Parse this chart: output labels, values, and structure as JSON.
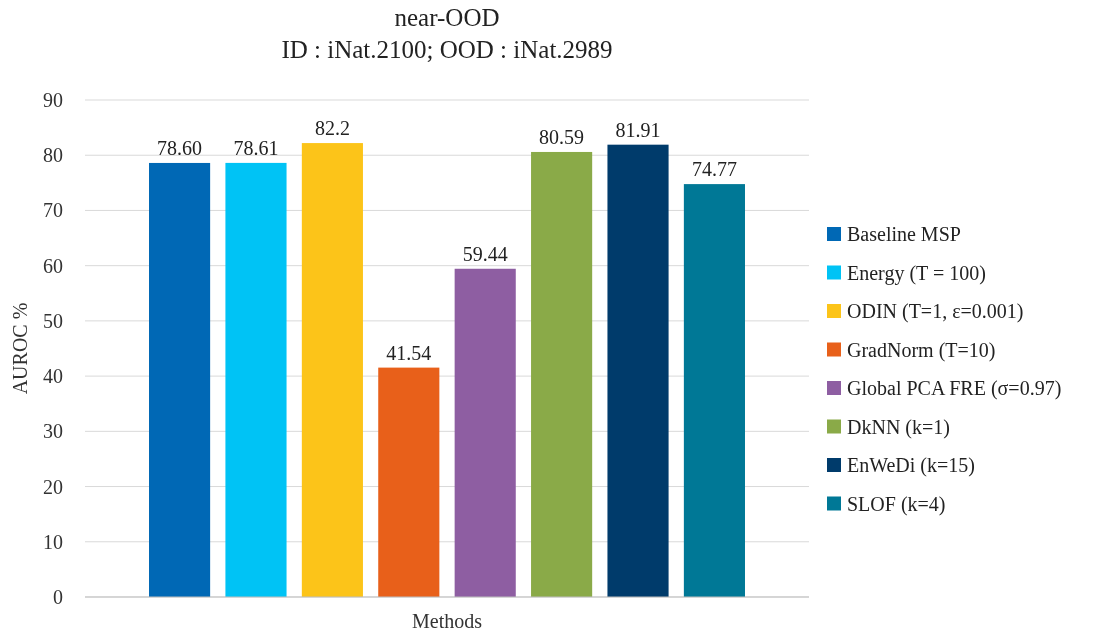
{
  "chart_data": {
    "type": "bar",
    "title": "near-OOD",
    "subtitle": "ID : iNat.2100; OOD : iNat.2989",
    "xlabel": "Methods",
    "ylabel": "AUROC %",
    "categories": [
      null
    ],
    "series": [
      {
        "name": "Baseline MSP",
        "color": "#0068b5",
        "values": [
          78.6
        ],
        "value_labels": [
          "78.60"
        ]
      },
      {
        "name": "Energy (T = 100)",
        "color": "#00c3f5",
        "values": [
          78.61
        ],
        "value_labels": [
          "78.61"
        ]
      },
      {
        "name": "ODIN (T=1, ε=0.001)",
        "color": "#fcc419",
        "values": [
          82.2
        ],
        "value_labels": [
          "82.2"
        ]
      },
      {
        "name": "GradNorm (T=10)",
        "color": "#e8601a",
        "values": [
          41.54
        ],
        "value_labels": [
          "41.54"
        ]
      },
      {
        "name": "Global PCA FRE (σ=0.97)",
        "color": "#8e5ea2",
        "values": [
          59.44
        ],
        "value_labels": [
          "59.44"
        ]
      },
      {
        "name": "DkNN (k=1)",
        "color": "#8aaa48",
        "values": [
          80.59
        ],
        "value_labels": [
          "80.59"
        ]
      },
      {
        "name": "EnWeDi (k=15)",
        "color": "#003b6b",
        "values": [
          81.91
        ],
        "value_labels": [
          "81.91"
        ]
      },
      {
        "name": "SLOF (k=4)",
        "color": "#007896",
        "values": [
          74.77
        ],
        "value_labels": [
          "74.77"
        ]
      }
    ],
    "ylim": [
      0,
      90
    ],
    "yticks": [
      0,
      10,
      20,
      30,
      40,
      50,
      60,
      70,
      80,
      90
    ],
    "grid": "y",
    "legend": "right"
  }
}
